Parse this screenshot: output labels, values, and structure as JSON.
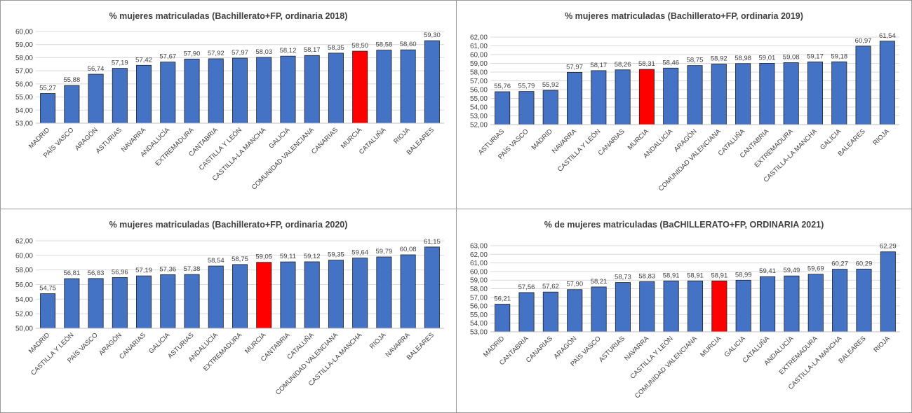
{
  "colors": {
    "bar": "#4472C4",
    "highlight": "#FF0000",
    "grid": "#d9d9d9",
    "text": "#404040"
  },
  "chart_data": [
    {
      "type": "bar",
      "title": "% mujeres matriculadas (Bachillerato+FP, ordinaria 2018)",
      "categories": [
        "MADRID",
        "PAÍS VASCO",
        "ARAGÓN",
        "ASTURIAS",
        "NAVARRA",
        "ANDALUCÍA",
        "EXTREMADURA",
        "CANTABRIA",
        "CASTILLA Y LEÓN",
        "CASTILLA-LA MANCHA",
        "GALICIA",
        "COMUNIDAD VALENCIANA",
        "CANARIAS",
        "MURCIA",
        "CATALUÑA",
        "RIOJA",
        "BALEARES"
      ],
      "values": [
        55.27,
        55.88,
        56.74,
        57.19,
        57.42,
        57.67,
        57.9,
        57.92,
        57.97,
        58.03,
        58.12,
        58.17,
        58.35,
        58.5,
        58.58,
        58.6,
        59.3
      ],
      "value_labels": [
        "55,27",
        "55,88",
        "56,74",
        "57,19",
        "57,42",
        "57,67",
        "57,90",
        "57,92",
        "57,97",
        "58,03",
        "58,12",
        "58,17",
        "58,35",
        "58,50",
        "58,58",
        "58,60",
        "59,30"
      ],
      "ylim": [
        53,
        60
      ],
      "yticks": [
        "53,00",
        "54,00",
        "55,00",
        "56,00",
        "57,00",
        "58,00",
        "59,00",
        "60,00"
      ],
      "highlight": "MURCIA",
      "grid": true
    },
    {
      "type": "bar",
      "title": "% mujeres matriculadas (Bachillerato+FP, ordinaria 2019)",
      "categories": [
        "ASTURIAS",
        "PAÍS VASCO",
        "MADRID",
        "NAVARRA",
        "CASTILLA Y LEÓN",
        "CANARIAS",
        "MURCIA",
        "ANDALUCÍA",
        "ARAGÓN",
        "COMUNIDAD VALENCIANA",
        "CATALUÑA",
        "CANTABRIA",
        "EXTREMADURA",
        "CASTILLA-LA MANCHA",
        "GALICIA",
        "BALEARES",
        "RIOJA"
      ],
      "values": [
        55.76,
        55.79,
        55.92,
        57.97,
        58.17,
        58.26,
        58.31,
        58.46,
        58.75,
        58.92,
        58.98,
        59.01,
        59.08,
        59.17,
        59.18,
        60.97,
        61.54
      ],
      "value_labels": [
        "55,76",
        "55,79",
        "55,92",
        "57,97",
        "58,17",
        "58,26",
        "58,31",
        "58,46",
        "58,75",
        "58,92",
        "58,98",
        "59,01",
        "59,08",
        "59,17",
        "59,18",
        "60,97",
        "61,54"
      ],
      "ylim": [
        52,
        62
      ],
      "yticks": [
        "52,00",
        "53,00",
        "54,00",
        "55,00",
        "56,00",
        "57,00",
        "58,00",
        "59,00",
        "60,00",
        "61,00",
        "62,00"
      ],
      "highlight": "MURCIA",
      "grid": true
    },
    {
      "type": "bar",
      "title": "% mujeres matriculadas (Bachillerato+FP, ordinaria 2020)",
      "categories": [
        "MADRID",
        "CASTILLA Y LEÓN",
        "PAÍS VASCO",
        "ARAGÓN",
        "CANARIAS",
        "GALICIA",
        "ASTURIAS",
        "ANDALUCÍA",
        "EXTREMADURA",
        "MURCIA",
        "CANTABRIA",
        "CATALUÑA",
        "COMUNIDAD VALENCIANA",
        "CASTILLA-LA MANCHA",
        "RIOJA",
        "NAVARRA",
        "BALEARES"
      ],
      "values": [
        54.75,
        56.81,
        56.83,
        56.96,
        57.19,
        57.36,
        57.38,
        58.54,
        58.75,
        59.05,
        59.11,
        59.12,
        59.35,
        59.64,
        59.79,
        60.08,
        61.15
      ],
      "value_labels": [
        "54,75",
        "56,81",
        "56,83",
        "56,96",
        "57,19",
        "57,36",
        "57,38",
        "58,54",
        "58,75",
        "59,05",
        "59,11",
        "59,12",
        "59,35",
        "59,64",
        "59,79",
        "60,08",
        "61,15"
      ],
      "ylim": [
        50,
        62
      ],
      "yticks": [
        "50,00",
        "52,00",
        "54,00",
        "56,00",
        "58,00",
        "60,00",
        "62,00"
      ],
      "highlight": "MURCIA",
      "grid": true
    },
    {
      "type": "bar",
      "title": "% de mujeres matriculadas (BaCHILLERATO+FP, ORDINARIA 2021)",
      "categories": [
        "MADRID",
        "CANTABRIA",
        "CANARIAS",
        "ARAGÓN",
        "PAÍS VASCO",
        "ASTURIAS",
        "NAVARRA",
        "CASTILLA Y LEÓN",
        "COMUNIDAD VALENCIANA",
        "MURCIA",
        "GALICIA",
        "CATALUÑA",
        "ANDALUCÍA",
        "EXTREMADURA",
        "CASTILLA-LA MANCHA",
        "BALEARES",
        "RIOJA"
      ],
      "values": [
        56.21,
        57.56,
        57.62,
        57.9,
        58.21,
        58.73,
        58.83,
        58.91,
        58.91,
        58.91,
        58.99,
        59.41,
        59.49,
        59.69,
        60.27,
        60.29,
        62.29
      ],
      "value_labels": [
        "56,21",
        "57,56",
        "57,62",
        "57,90",
        "58,21",
        "58,73",
        "58,83",
        "58,91",
        "58,91",
        "58,91",
        "58,99",
        "59,41",
        "59,49",
        "59,69",
        "60,27",
        "60,29",
        "62,29"
      ],
      "ylim": [
        53,
        63
      ],
      "yticks": [
        "53,00",
        "54,00",
        "55,00",
        "56,00",
        "57,00",
        "58,00",
        "59,00",
        "60,00",
        "61,00",
        "62,00",
        "63,00"
      ],
      "highlight": "MURCIA",
      "grid": true
    }
  ]
}
